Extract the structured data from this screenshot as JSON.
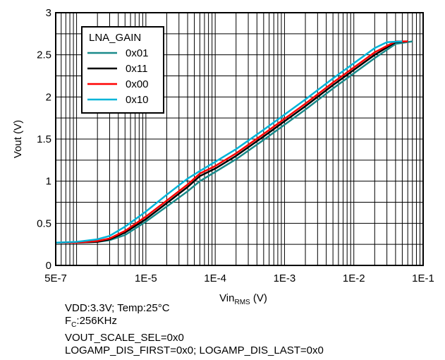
{
  "chart_data": {
    "type": "line",
    "xlabel": "Vin",
    "xlabel_sub": "RMS",
    "xlabel_unit": " (V)",
    "ylabel": "Vout (V)",
    "x_scale": "log",
    "xlim": [
      5e-07,
      0.1
    ],
    "ylim": [
      0,
      3
    ],
    "grid": true,
    "x_tick_labels": [
      {
        "x": 5e-07,
        "label": "5E-7"
      },
      {
        "x": 1e-05,
        "label": "1E-5"
      },
      {
        "x": 0.0001,
        "label": "1E-4"
      },
      {
        "x": 0.001,
        "label": "1E-3"
      },
      {
        "x": 0.01,
        "label": "1E-2"
      },
      {
        "x": 0.1,
        "label": "1E-1"
      }
    ],
    "y_tick_labels": [
      {
        "y": 0,
        "label": "0"
      },
      {
        "y": 0.5,
        "label": "0.5"
      },
      {
        "y": 1,
        "label": "1"
      },
      {
        "y": 1.5,
        "label": "1.5"
      },
      {
        "y": 2,
        "label": "2"
      },
      {
        "y": 2.5,
        "label": "2.5"
      },
      {
        "y": 3,
        "label": "3"
      }
    ],
    "legend_title": "LNA_GAIN",
    "legend_position": "top-left",
    "series": [
      {
        "name": "0x01",
        "color": "#1a8a8a",
        "points": [
          [
            5e-07,
            0.27
          ],
          [
            1e-06,
            0.27
          ],
          [
            2e-06,
            0.28
          ],
          [
            3e-06,
            0.3
          ],
          [
            5e-06,
            0.36
          ],
          [
            1e-05,
            0.52
          ],
          [
            2e-05,
            0.7
          ],
          [
            4e-05,
            0.88
          ],
          [
            6e-05,
            1.0
          ],
          [
            0.0001,
            1.11
          ],
          [
            0.0002,
            1.26
          ],
          [
            0.0005,
            1.49
          ],
          [
            0.001,
            1.67
          ],
          [
            0.002,
            1.85
          ],
          [
            0.005,
            2.1
          ],
          [
            0.01,
            2.28
          ],
          [
            0.02,
            2.46
          ],
          [
            0.04,
            2.63
          ],
          [
            0.07,
            2.66
          ]
        ]
      },
      {
        "name": "0x11",
        "color": "#000000",
        "points": [
          [
            5e-07,
            0.27
          ],
          [
            1e-06,
            0.27
          ],
          [
            2e-06,
            0.28
          ],
          [
            3e-06,
            0.31
          ],
          [
            5e-06,
            0.39
          ],
          [
            1e-05,
            0.55
          ],
          [
            2e-05,
            0.74
          ],
          [
            4e-05,
            0.93
          ],
          [
            6e-05,
            1.06
          ],
          [
            0.0001,
            1.15
          ],
          [
            0.0002,
            1.3
          ],
          [
            0.0005,
            1.53
          ],
          [
            0.001,
            1.71
          ],
          [
            0.002,
            1.89
          ],
          [
            0.005,
            2.14
          ],
          [
            0.01,
            2.32
          ],
          [
            0.02,
            2.5
          ],
          [
            0.04,
            2.65
          ],
          [
            0.06,
            2.66
          ]
        ]
      },
      {
        "name": "0x00",
        "color": "#ff0000",
        "points": [
          [
            5e-07,
            0.27
          ],
          [
            1e-06,
            0.27
          ],
          [
            2e-06,
            0.29
          ],
          [
            3e-06,
            0.32
          ],
          [
            5e-06,
            0.41
          ],
          [
            1e-05,
            0.58
          ],
          [
            2e-05,
            0.77
          ],
          [
            4e-05,
            0.96
          ],
          [
            6e-05,
            1.09
          ],
          [
            0.0001,
            1.18
          ],
          [
            0.0002,
            1.33
          ],
          [
            0.0005,
            1.56
          ],
          [
            0.001,
            1.74
          ],
          [
            0.002,
            1.92
          ],
          [
            0.005,
            2.17
          ],
          [
            0.01,
            2.35
          ],
          [
            0.02,
            2.53
          ],
          [
            0.04,
            2.66
          ],
          [
            0.06,
            2.66
          ]
        ]
      },
      {
        "name": "0x10",
        "color": "#00b4d8",
        "points": [
          [
            5e-07,
            0.27
          ],
          [
            1e-06,
            0.28
          ],
          [
            2e-06,
            0.31
          ],
          [
            3e-06,
            0.35
          ],
          [
            5e-06,
            0.46
          ],
          [
            1e-05,
            0.64
          ],
          [
            2e-05,
            0.84
          ],
          [
            4e-05,
            1.03
          ],
          [
            6e-05,
            1.12
          ],
          [
            0.0001,
            1.23
          ],
          [
            0.0002,
            1.38
          ],
          [
            0.0005,
            1.61
          ],
          [
            0.001,
            1.79
          ],
          [
            0.002,
            1.97
          ],
          [
            0.005,
            2.22
          ],
          [
            0.01,
            2.4
          ],
          [
            0.02,
            2.58
          ],
          [
            0.03,
            2.65
          ],
          [
            0.05,
            2.66
          ]
        ]
      }
    ]
  },
  "notes": {
    "line1": "VDD:3.3V; Temp:25°C",
    "line2_prefix": "F",
    "line2_sub": "C",
    "line2_rest": ":256KHz",
    "line3": "VOUT_SCALE_SEL=0x0",
    "line4": "LOGAMP_DIS_FIRST=0x0; LOGAMP_DIS_LAST=0x0"
  }
}
